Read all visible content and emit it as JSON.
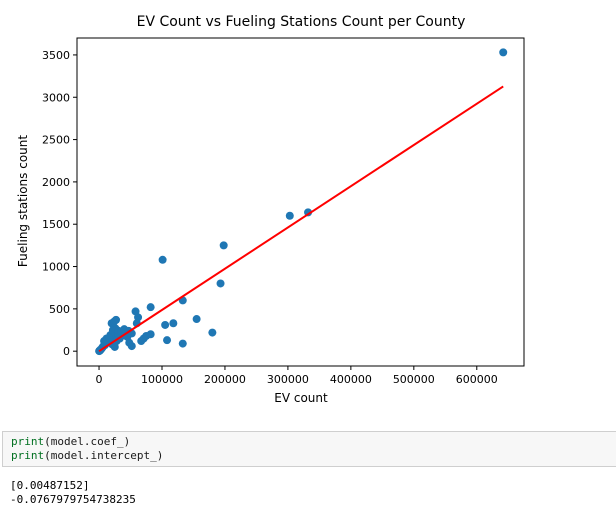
{
  "chart_data": {
    "type": "scatter",
    "title": "EV Count vs Fueling Stations Count per County",
    "xlabel": "EV count",
    "ylabel": "Fueling stations count",
    "xlim": [
      -35000,
      675000
    ],
    "ylim": [
      -175,
      3700
    ],
    "x_ticks": [
      0,
      100000,
      200000,
      300000,
      400000,
      500000,
      600000
    ],
    "x_tick_labels": [
      "0",
      "100000",
      "200000",
      "300000",
      "400000",
      "500000",
      "600000"
    ],
    "y_ticks": [
      0,
      500,
      1000,
      1500,
      2000,
      2500,
      3000,
      3500
    ],
    "y_tick_labels": [
      "0",
      "500",
      "1000",
      "1500",
      "2000",
      "2500",
      "3000",
      "3500"
    ],
    "grid": false,
    "colors": {
      "points": "#1f77b4",
      "fit_line": "#ff0000"
    },
    "series": [
      {
        "kind": "scatter",
        "x": [
          642000,
          332000,
          303000,
          198000,
          193000,
          101000,
          180000,
          133000,
          155000,
          118000,
          105000,
          82000,
          58000,
          62000,
          27000,
          20000,
          24000,
          133000,
          108000,
          82000,
          71000,
          67000,
          52000,
          52000,
          48000,
          47000,
          43000,
          40000,
          36000,
          33000,
          30000,
          28000,
          26000,
          24000,
          21000,
          19000,
          17000,
          15000,
          14000,
          13000,
          12000,
          11000,
          10000,
          9000,
          8000,
          7000,
          6000,
          5000,
          4000,
          3000,
          2000,
          1500,
          1000,
          500,
          200,
          22000,
          18000,
          16000,
          31000,
          35000,
          41000,
          45000,
          60000,
          75000,
          25000
        ],
        "y": [
          3530,
          1640,
          1600,
          1250,
          800,
          1080,
          220,
          600,
          380,
          330,
          310,
          520,
          470,
          400,
          370,
          330,
          350,
          90,
          130,
          200,
          150,
          120,
          60,
          210,
          100,
          240,
          180,
          260,
          210,
          150,
          200,
          120,
          270,
          130,
          80,
          190,
          170,
          140,
          120,
          100,
          150,
          90,
          80,
          70,
          120,
          60,
          50,
          40,
          30,
          20,
          15,
          10,
          5,
          3,
          1,
          250,
          190,
          160,
          240,
          230,
          200,
          170,
          330,
          180,
          50
        ]
      },
      {
        "kind": "line",
        "x": [
          0,
          642000
        ],
        "y": [
          -0.0767979754738235,
          3127.64
        ]
      }
    ]
  },
  "code_cell": {
    "lines": [
      {
        "fn": "print",
        "arg": "(model.coef_)"
      },
      {
        "fn": "print",
        "arg": "(model.intercept_)"
      }
    ]
  },
  "output": {
    "coef": "[0.00487152]",
    "intercept": "-0.0767979754738235"
  }
}
